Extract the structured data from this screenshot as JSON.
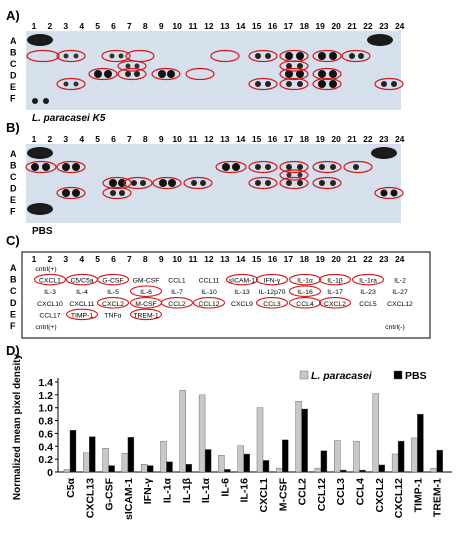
{
  "panels": {
    "a": {
      "label": "A)",
      "caption": "L. paracasei  K5",
      "row_labels": [
        "A",
        "B",
        "C",
        "D",
        "E",
        "F"
      ],
      "col_numbers": [
        "1",
        "2",
        "3",
        "4",
        "5",
        "6",
        "7",
        "8",
        "9",
        "10",
        "11",
        "12",
        "13",
        "14",
        "15",
        "16",
        "17",
        "18",
        "19",
        "20",
        "21",
        "22",
        "23",
        "24"
      ]
    },
    "b": {
      "label": "B)",
      "caption": "PBS",
      "row_labels": [
        "A",
        "B",
        "C",
        "D",
        "E",
        "F"
      ],
      "col_numbers": [
        "1",
        "2",
        "3",
        "4",
        "5",
        "6",
        "7",
        "8",
        "9",
        "10",
        "11",
        "12",
        "13",
        "14",
        "15",
        "16",
        "17",
        "18",
        "19",
        "20",
        "21",
        "22",
        "23",
        "24"
      ]
    },
    "c": {
      "label": "C)",
      "row_labels": [
        "A",
        "B",
        "C",
        "D",
        "E",
        "F"
      ],
      "col_numbers": [
        "1",
        "2",
        "3",
        "4",
        "5",
        "6",
        "7",
        "8",
        "9",
        "10",
        "11",
        "12",
        "13",
        "14",
        "15",
        "16",
        "17",
        "18",
        "19",
        "20",
        "21",
        "22",
        "23",
        "24"
      ],
      "rows": [
        [
          "cntrl(+)",
          "",
          "",
          "",
          "",
          "",
          "",
          "",
          "",
          "",
          "cntrl(+)"
        ],
        [
          "CXCL1",
          "C5/C5a",
          "G-CSF",
          "GM-CSF",
          "CCL1",
          "CCL11",
          "sICAM-1",
          "IFN-γ",
          "IL-1α",
          "IL-1β",
          "IL-1ra",
          "IL-2"
        ],
        [
          "IL-3",
          "IL-4",
          "IL-5",
          "IL-6",
          "IL-7",
          "IL-10",
          "IL-13",
          "IL-12p70",
          "IL-16",
          "IL-17",
          "IL-23",
          "IL-27"
        ],
        [
          "CXCL10",
          "CXCL11",
          "CXCL2",
          "M-CSF",
          "CCL2",
          "CCL12",
          "CXCL9",
          "CCL3",
          "CCL4",
          "CXCL2",
          "CCL5",
          "CXCL12"
        ],
        [
          "CCL17",
          "TIMP-1",
          "TNFα",
          "TREM-1"
        ],
        [
          "cntrl(+)",
          "cntrl(-)"
        ]
      ]
    },
    "d": {
      "label": "D)"
    }
  },
  "chart_data": {
    "type": "bar",
    "ylabel": "Normalized mean pixel density",
    "ylim": [
      0,
      1.4
    ],
    "yticks": [
      "0",
      "0.2",
      "0.4",
      "0.6",
      "0.8",
      "1.0",
      "1.2",
      "1.4"
    ],
    "legend_position": "top-right",
    "categories": [
      "C5α",
      "CXCL13",
      "G-CSF",
      "sICAM-1",
      "IFN-γ",
      "IL-1α",
      "IL-1β",
      "IL-1α",
      "IL-6",
      "IL-16",
      "CXCL1",
      "M-CSF",
      "CCL2",
      "CCL12",
      "CCL3",
      "CCL4",
      "CXCL2",
      "CXCL12",
      "TIMP-1",
      "TREM-1"
    ],
    "series": [
      {
        "name": "L. paracasei",
        "color": "#c8c8c8",
        "values": [
          0.04,
          0.3,
          0.37,
          0.29,
          0.12,
          0.48,
          1.27,
          1.2,
          0.26,
          0.41,
          1.0,
          0.06,
          1.1,
          0.06,
          0.49,
          0.48,
          1.22,
          0.28,
          0.53,
          0.06
        ]
      },
      {
        "name": "PBS",
        "color": "#000000",
        "values": [
          0.65,
          0.55,
          0.1,
          0.54,
          0.1,
          0.16,
          0.12,
          0.35,
          0.04,
          0.28,
          0.18,
          0.5,
          0.98,
          0.33,
          0.03,
          0.03,
          0.11,
          0.48,
          0.9,
          0.34
        ]
      }
    ]
  }
}
